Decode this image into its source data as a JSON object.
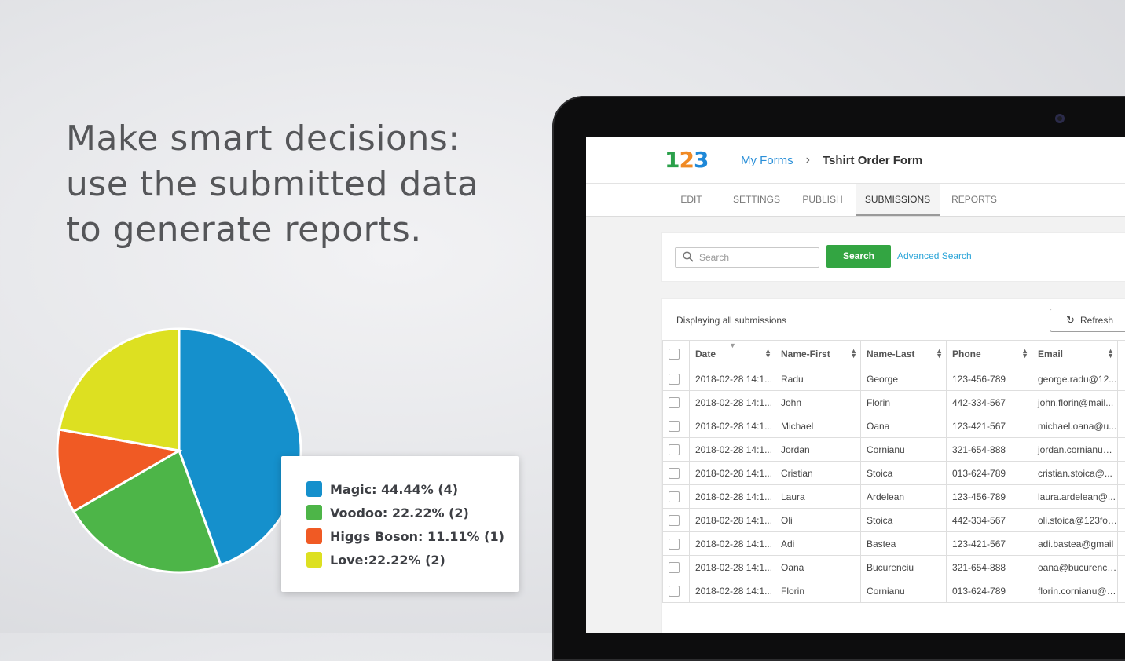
{
  "headline": [
    "Make smart decisions:",
    "use the submitted data",
    "to generate reports."
  ],
  "chart_data": {
    "type": "pie",
    "slices": [
      {
        "label": "Magic: 44.44% (4)",
        "name": "Magic",
        "percent": 44.44,
        "count": 4,
        "color": "#1590cc"
      },
      {
        "label": "Voodoo: 22.22% (2)",
        "name": "Voodoo",
        "percent": 22.22,
        "count": 2,
        "color": "#4db548"
      },
      {
        "label": "Higgs Boson: 11.11% (1)",
        "name": "Higgs Boson",
        "percent": 11.11,
        "count": 1,
        "color": "#f05a24"
      },
      {
        "label": "Love:22.22% (2)",
        "name": "Love",
        "percent": 22.22,
        "count": 2,
        "color": "#dde021"
      }
    ]
  },
  "app": {
    "logo": [
      "1",
      "2",
      "3"
    ],
    "logo_colors": [
      "#2aa04a",
      "#f08a24",
      "#1e88d8"
    ],
    "breadcrumb": {
      "link": "My Forms",
      "separator": "›",
      "current": "Tshirt Order Form"
    },
    "tabs": [
      "EDIT",
      "SETTINGS",
      "PUBLISH",
      "SUBMISSIONS",
      "REPORTS"
    ],
    "active_tab": "SUBMISSIONS",
    "search": {
      "placeholder": "Search",
      "button": "Search",
      "advanced": "Advanced Search"
    },
    "display_text": "Displaying all submissions",
    "refresh": {
      "icon": "refresh-icon",
      "label": "Refresh"
    },
    "columns": [
      "Date",
      "Name-First",
      "Name-Last",
      "Phone",
      "Email"
    ],
    "rows": [
      {
        "date": "2018-02-28 14:1...",
        "first": "Radu",
        "last": "George",
        "phone": "123-456-789",
        "email": "george.radu@12..."
      },
      {
        "date": "2018-02-28 14:1...",
        "first": "John",
        "last": "Florin",
        "phone": "442-334-567",
        "email": "john.florin@mail..."
      },
      {
        "date": "2018-02-28 14:1...",
        "first": "Michael",
        "last": "Oana",
        "phone": "123-421-567",
        "email": "michael.oana@u..."
      },
      {
        "date": "2018-02-28 14:1...",
        "first": "Jordan",
        "last": "Cornianu",
        "phone": "321-654-888",
        "email": "jordan.cornianu@..."
      },
      {
        "date": "2018-02-28 14:1...",
        "first": "Cristian",
        "last": "Stoica",
        "phone": "013-624-789",
        "email": "cristian.stoica@..."
      },
      {
        "date": "2018-02-28 14:1...",
        "first": "Laura",
        "last": "Ardelean",
        "phone": "123-456-789",
        "email": "laura.ardelean@..."
      },
      {
        "date": "2018-02-28 14:1...",
        "first": "Oli",
        "last": "Stoica",
        "phone": "442-334-567",
        "email": "oli.stoica@123for..."
      },
      {
        "date": "2018-02-28 14:1...",
        "first": "Adi",
        "last": "Bastea",
        "phone": "123-421-567",
        "email": "adi.bastea@gmail"
      },
      {
        "date": "2018-02-28 14:1...",
        "first": "Oana",
        "last": "Bucurenciu",
        "phone": "321-654-888",
        "email": "oana@bucurenciu..."
      },
      {
        "date": "2018-02-28 14:1...",
        "first": "Florin",
        "last": "Cornianu",
        "phone": "013-624-789",
        "email": "florin.cornianu@1..."
      }
    ]
  }
}
